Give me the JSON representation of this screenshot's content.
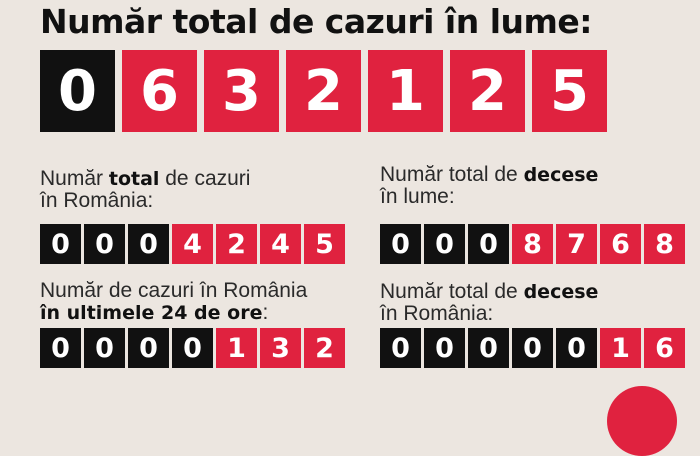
{
  "title": "Număr total de cazuri în lume:",
  "world_cases_digits": [
    "0",
    "6",
    "3",
    "2",
    "1",
    "2",
    "5"
  ],
  "world_cases_dark_count": 1,
  "ro_total": {
    "label_pre": "Număr ",
    "label_bold": "total",
    "label_post": " de cazuri",
    "label_line2": "în România:",
    "digits": [
      "0",
      "0",
      "0",
      "4",
      "2",
      "4",
      "5"
    ],
    "dark_count": 3
  },
  "world_deaths": {
    "label_pre": "Număr total de ",
    "label_bold": "decese",
    "label_line2": "în lume:",
    "digits": [
      "0",
      "0",
      "0",
      "8",
      "7",
      "6",
      "8"
    ],
    "dark_count": 3
  },
  "ro_24h": {
    "label_line1": "Număr de cazuri în România",
    "label_bold": "în ultimele 24 de ore",
    "label_post": ":",
    "digits": [
      "0",
      "0",
      "0",
      "0",
      "1",
      "3",
      "2"
    ],
    "dark_count": 4
  },
  "ro_deaths": {
    "label_pre": "Număr total de ",
    "label_bold": "decese",
    "label_line2": "în România:",
    "digits": [
      "0",
      "0",
      "0",
      "0",
      "0",
      "1",
      "6"
    ],
    "dark_count": 5
  },
  "colors": {
    "accent": "#e0223f",
    "dark": "#111111",
    "background": "#ece6e0"
  }
}
